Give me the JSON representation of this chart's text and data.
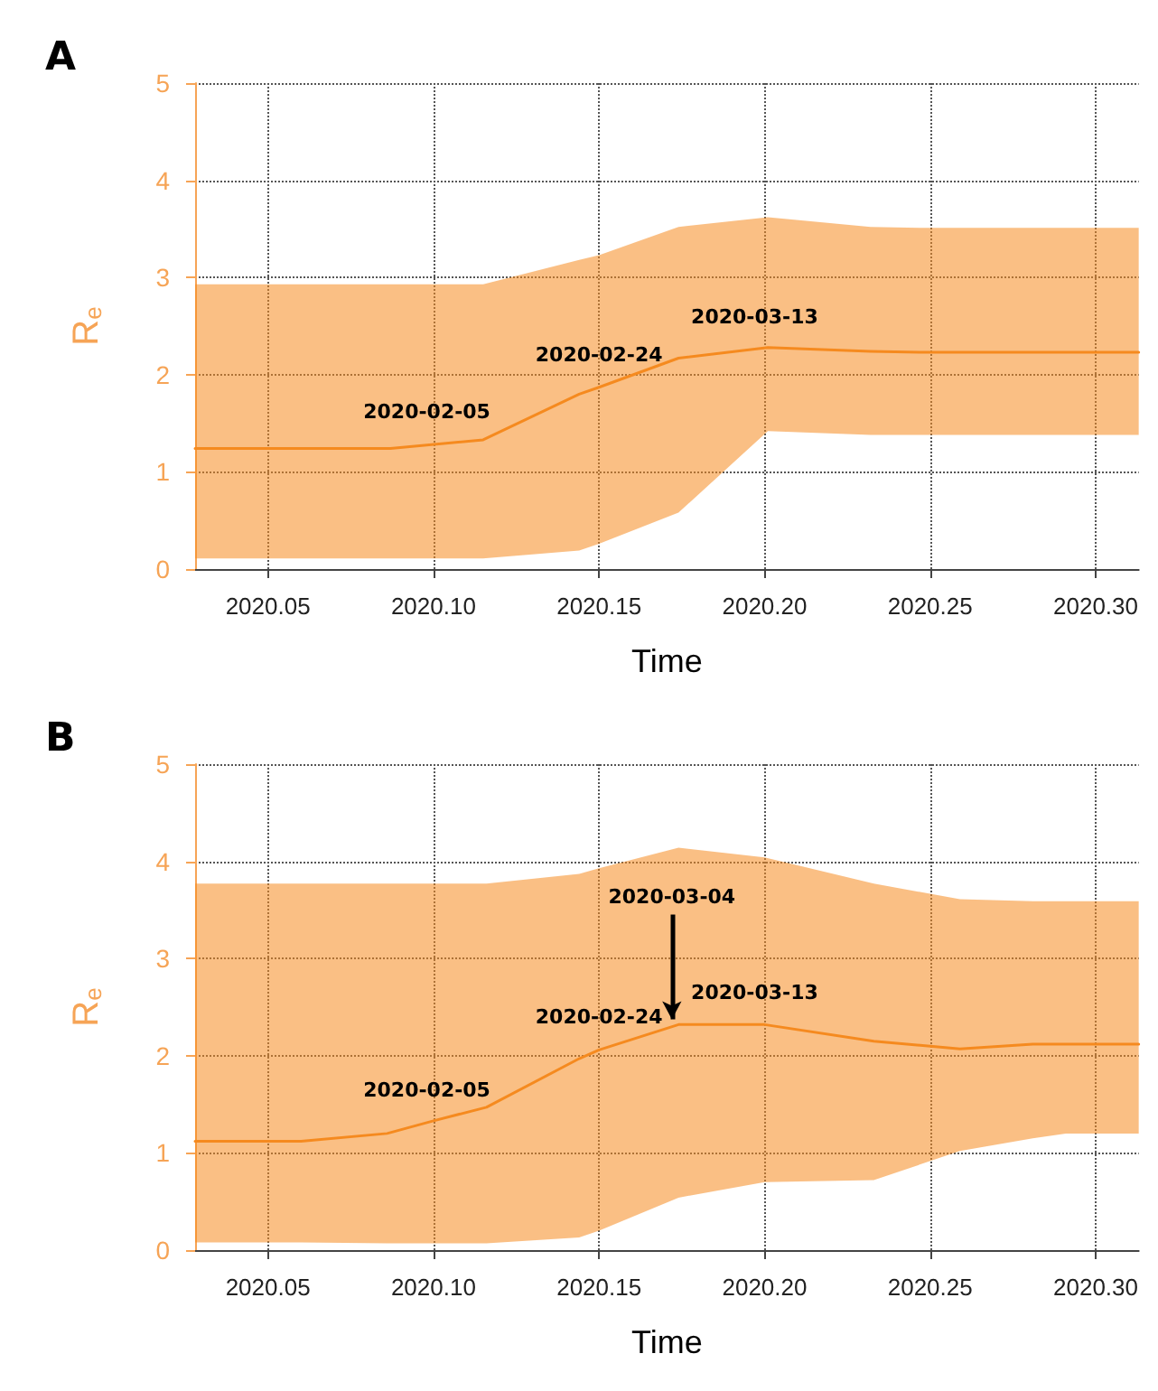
{
  "chart_data": [
    {
      "type": "line",
      "title": "A",
      "xlabel": "Time",
      "ylabel": "R$_{e}$",
      "x": [
        2020.028,
        2020.087,
        2020.115,
        2020.144,
        2020.15,
        2020.174,
        2020.201,
        2020.232,
        2020.249,
        2020.313
      ],
      "series": [
        {
          "color": "#f58a1f",
          "values": [
            1.24,
            1.24,
            1.33,
            1.8,
            1.87,
            2.17,
            2.28,
            2.24,
            2.23,
            2.23
          ],
          "lower": [
            0.11,
            0.11,
            0.11,
            0.19,
            0.26,
            0.58,
            1.42,
            1.38,
            1.38,
            1.38
          ],
          "upper": [
            2.93,
            2.93,
            2.93,
            3.18,
            3.23,
            3.52,
            3.62,
            3.52,
            3.51,
            3.51
          ]
        }
      ],
      "xlim": [
        2020.028,
        2020.313
      ],
      "ylim": [
        0,
        5
      ],
      "xticks": [
        {
          "value": 2020.05,
          "label": "2020.05"
        },
        {
          "value": 2020.1,
          "label": "2020.10"
        },
        {
          "value": 2020.15,
          "label": "2020.15"
        },
        {
          "value": 2020.2,
          "label": "2020.20"
        },
        {
          "value": 2020.25,
          "label": "2020.25"
        },
        {
          "value": 2020.3,
          "label": "2020.30"
        }
      ],
      "yticks": [
        0,
        1,
        2,
        3,
        4,
        5
      ],
      "grid": true,
      "marker": "none",
      "line_style": "solid",
      "annotations": [
        {
          "text": "2020-02-05",
          "x": 2020.098,
          "y": 1.28
        },
        {
          "text": "2020-02-24",
          "x": 2020.15,
          "y": 1.87
        },
        {
          "text": "2020-03-13",
          "x": 2020.197,
          "y": 2.26
        }
      ]
    },
    {
      "type": "line",
      "title": "B",
      "xlabel": "Time",
      "ylabel": "R$_{e}$",
      "x": [
        2020.028,
        2020.06,
        2020.086,
        2020.1,
        2020.116,
        2020.144,
        2020.15,
        2020.174,
        2020.2,
        2020.233,
        2020.259,
        2020.281,
        2020.291,
        2020.313
      ],
      "series": [
        {
          "color": "#f58a1f",
          "values": [
            1.12,
            1.12,
            1.2,
            1.33,
            1.47,
            1.97,
            2.06,
            2.32,
            2.32,
            2.15,
            2.07,
            2.12,
            2.12,
            2.12
          ],
          "lower": [
            0.08,
            0.08,
            0.07,
            0.07,
            0.07,
            0.13,
            0.2,
            0.54,
            0.7,
            0.72,
            1.02,
            1.15,
            1.2,
            1.2
          ],
          "upper": [
            3.77,
            3.77,
            3.77,
            3.77,
            3.77,
            3.87,
            3.93,
            4.14,
            4.04,
            3.77,
            3.61,
            3.59,
            3.59,
            3.59
          ]
        }
      ],
      "xlim": [
        2020.028,
        2020.313
      ],
      "ylim": [
        0,
        5
      ],
      "xticks": [
        {
          "value": 2020.05,
          "label": "2020.05"
        },
        {
          "value": 2020.1,
          "label": "2020.10"
        },
        {
          "value": 2020.15,
          "label": "2020.15"
        },
        {
          "value": 2020.2,
          "label": "2020.20"
        },
        {
          "value": 2020.25,
          "label": "2020.25"
        },
        {
          "value": 2020.3,
          "label": "2020.30"
        }
      ],
      "yticks": [
        0,
        1,
        2,
        3,
        4,
        5
      ],
      "grid": true,
      "marker": "none",
      "line_style": "solid",
      "annotations": [
        {
          "text": "2020-02-05",
          "x": 2020.098,
          "y": 1.31
        },
        {
          "text": "2020-02-24",
          "x": 2020.15,
          "y": 2.06
        },
        {
          "text": "2020-03-04",
          "x": 2020.172,
          "y": 2.3
        },
        {
          "text": "2020-03-13",
          "x": 2020.197,
          "y": 2.31
        }
      ]
    }
  ]
}
